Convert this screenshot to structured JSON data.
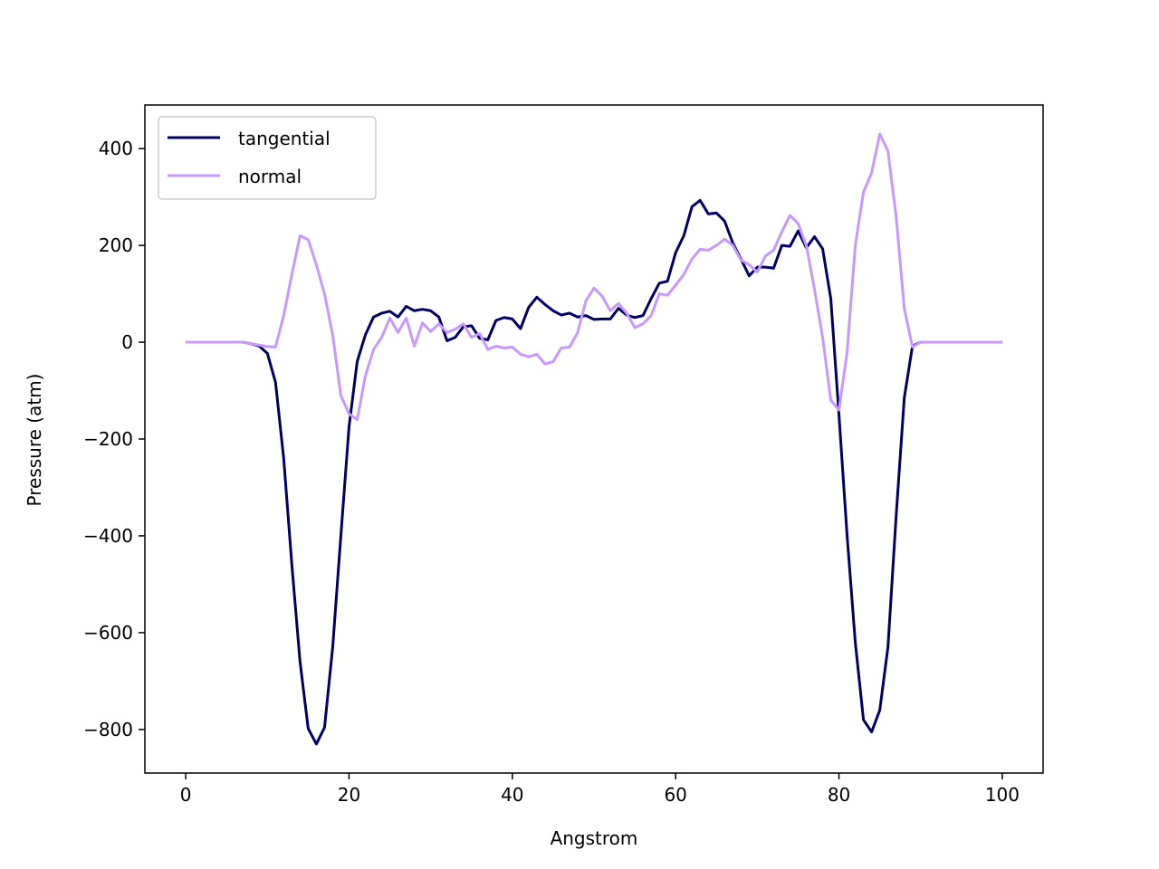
{
  "chart_data": {
    "type": "line",
    "title": "",
    "xlabel": "Angstrom",
    "ylabel": "Pressure (atm)",
    "xlim": [
      -5,
      105
    ],
    "ylim": [
      -890,
      490
    ],
    "xticks": [
      0,
      20,
      40,
      60,
      80,
      100
    ],
    "yticks": [
      -800,
      -600,
      -400,
      -200,
      0,
      200,
      400
    ],
    "xtick_labels": [
      "0",
      "20",
      "40",
      "60",
      "80",
      "100"
    ],
    "ytick_labels": [
      "−800",
      "−600",
      "−400",
      "−200",
      "0",
      "200",
      "400"
    ],
    "grid": false,
    "legend_position": "upper-left",
    "series": [
      {
        "name": "tangential",
        "color": "#000066",
        "x": [
          0,
          1,
          2,
          3,
          4,
          5,
          6,
          7,
          8,
          9,
          10,
          11,
          12,
          13,
          14,
          15,
          16,
          17,
          18,
          19,
          20,
          21,
          22,
          23,
          24,
          25,
          26,
          27,
          28,
          29,
          30,
          31,
          32,
          33,
          34,
          35,
          36,
          37,
          38,
          39,
          40,
          41,
          42,
          43,
          44,
          45,
          46,
          47,
          48,
          49,
          50,
          51,
          52,
          53,
          54,
          55,
          56,
          57,
          58,
          59,
          60,
          61,
          62,
          63,
          64,
          65,
          66,
          67,
          68,
          69,
          70,
          71,
          72,
          73,
          74,
          75,
          76,
          77,
          78,
          79,
          80,
          81,
          82,
          83,
          84,
          85,
          86,
          87,
          88,
          89,
          90,
          91,
          92,
          93,
          94,
          95,
          96,
          97,
          98,
          99,
          100
        ],
        "values": [
          0,
          0,
          0,
          0,
          0,
          0,
          0,
          0,
          -3,
          -8,
          -23,
          -83,
          -240,
          -460,
          -660,
          -798,
          -830,
          -796,
          -630,
          -400,
          -175,
          -40,
          15,
          52,
          60,
          64,
          52,
          74,
          65,
          68,
          65,
          52,
          3,
          10,
          32,
          34,
          8,
          5,
          45,
          51,
          48,
          28,
          72,
          93,
          78,
          65,
          56,
          60,
          52,
          55,
          47,
          48,
          48,
          70,
          56,
          51,
          55,
          90,
          122,
          126,
          185,
          220,
          280,
          293,
          265,
          267,
          250,
          205,
          172,
          137,
          155,
          155,
          153,
          200,
          198,
          230,
          195,
          218,
          193,
          90,
          -150,
          -400,
          -620,
          -780,
          -805,
          -760,
          -630,
          -360,
          -115,
          -8,
          0,
          0,
          0,
          0,
          0,
          0,
          0,
          0,
          0,
          0,
          0
        ]
      },
      {
        "name": "normal",
        "color": "#c799ff",
        "x": [
          0,
          1,
          2,
          3,
          4,
          5,
          6,
          7,
          8,
          9,
          10,
          11,
          12,
          13,
          14,
          15,
          16,
          17,
          18,
          19,
          20,
          21,
          22,
          23,
          24,
          25,
          26,
          27,
          28,
          29,
          30,
          31,
          32,
          33,
          34,
          35,
          36,
          37,
          38,
          39,
          40,
          41,
          42,
          43,
          44,
          45,
          46,
          47,
          48,
          49,
          50,
          51,
          52,
          53,
          54,
          55,
          56,
          57,
          58,
          59,
          60,
          61,
          62,
          63,
          64,
          65,
          66,
          67,
          68,
          69,
          70,
          71,
          72,
          73,
          74,
          75,
          76,
          77,
          78,
          79,
          80,
          81,
          82,
          83,
          84,
          85,
          86,
          87,
          88,
          89,
          90,
          91,
          92,
          93,
          94,
          95,
          96,
          97,
          98,
          99,
          100
        ],
        "values": [
          0,
          0,
          0,
          0,
          0,
          0,
          0,
          0,
          -3,
          -6,
          -9,
          -10,
          55,
          140,
          220,
          212,
          160,
          100,
          15,
          -110,
          -148,
          -160,
          -70,
          -15,
          10,
          50,
          20,
          50,
          -8,
          40,
          22,
          38,
          20,
          27,
          38,
          10,
          18,
          -15,
          -8,
          -12,
          -10,
          -25,
          -30,
          -25,
          -45,
          -40,
          -12,
          -10,
          20,
          85,
          112,
          95,
          65,
          80,
          60,
          30,
          38,
          55,
          100,
          97,
          118,
          140,
          172,
          192,
          190,
          200,
          213,
          200,
          170,
          160,
          145,
          178,
          190,
          228,
          262,
          245,
          200,
          110,
          10,
          -120,
          -140,
          -20,
          200,
          310,
          350,
          430,
          395,
          260,
          70,
          -10,
          0,
          0,
          0,
          0,
          0,
          0,
          0,
          0,
          0,
          0,
          0
        ]
      }
    ]
  }
}
